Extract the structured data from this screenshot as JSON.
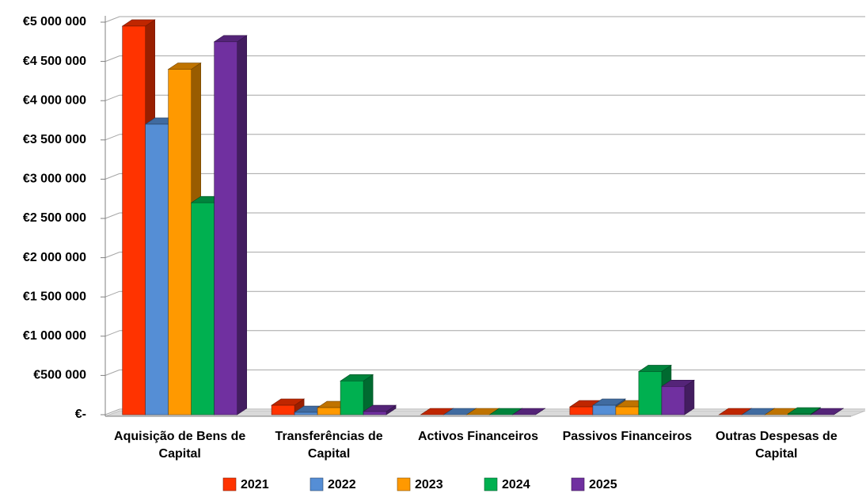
{
  "chart_data": {
    "type": "bar3d",
    "categories": [
      "Aquisição de Bens de Capital",
      "Transferências de Capital",
      "Activos Financeiros",
      "Passivos Financeiros",
      "Outras Despesas de Capital"
    ],
    "series": [
      {
        "name": "2021",
        "color": "#ff3300",
        "values": [
          4950000,
          120000,
          0,
          100000,
          0
        ]
      },
      {
        "name": "2022",
        "color": "#558ed5",
        "values": [
          3700000,
          30000,
          0,
          120000,
          0
        ]
      },
      {
        "name": "2023",
        "color": "#ff9900",
        "values": [
          4400000,
          90000,
          0,
          100000,
          0
        ]
      },
      {
        "name": "2024",
        "color": "#00b050",
        "values": [
          2700000,
          430000,
          0,
          550000,
          10000
        ]
      },
      {
        "name": "2025",
        "color": "#7030a0",
        "values": [
          4750000,
          40000,
          0,
          360000,
          0
        ]
      }
    ],
    "ylim": [
      0,
      5000000
    ],
    "yticks": [
      {
        "value": 0,
        "label": "€-"
      },
      {
        "value": 500000,
        "label": "€500 000"
      },
      {
        "value": 1000000,
        "label": "€1 000 000"
      },
      {
        "value": 1500000,
        "label": "€1 500 000"
      },
      {
        "value": 2000000,
        "label": "€2 000 000"
      },
      {
        "value": 2500000,
        "label": "€2 500 000"
      },
      {
        "value": 3000000,
        "label": "€3 000 000"
      },
      {
        "value": 3500000,
        "label": "€3 500 000"
      },
      {
        "value": 4000000,
        "label": "€4 000 000"
      },
      {
        "value": 4500000,
        "label": "€4 500 000"
      },
      {
        "value": 5000000,
        "label": "€5 000 000"
      }
    ],
    "grid": true,
    "legend": "bottom"
  }
}
